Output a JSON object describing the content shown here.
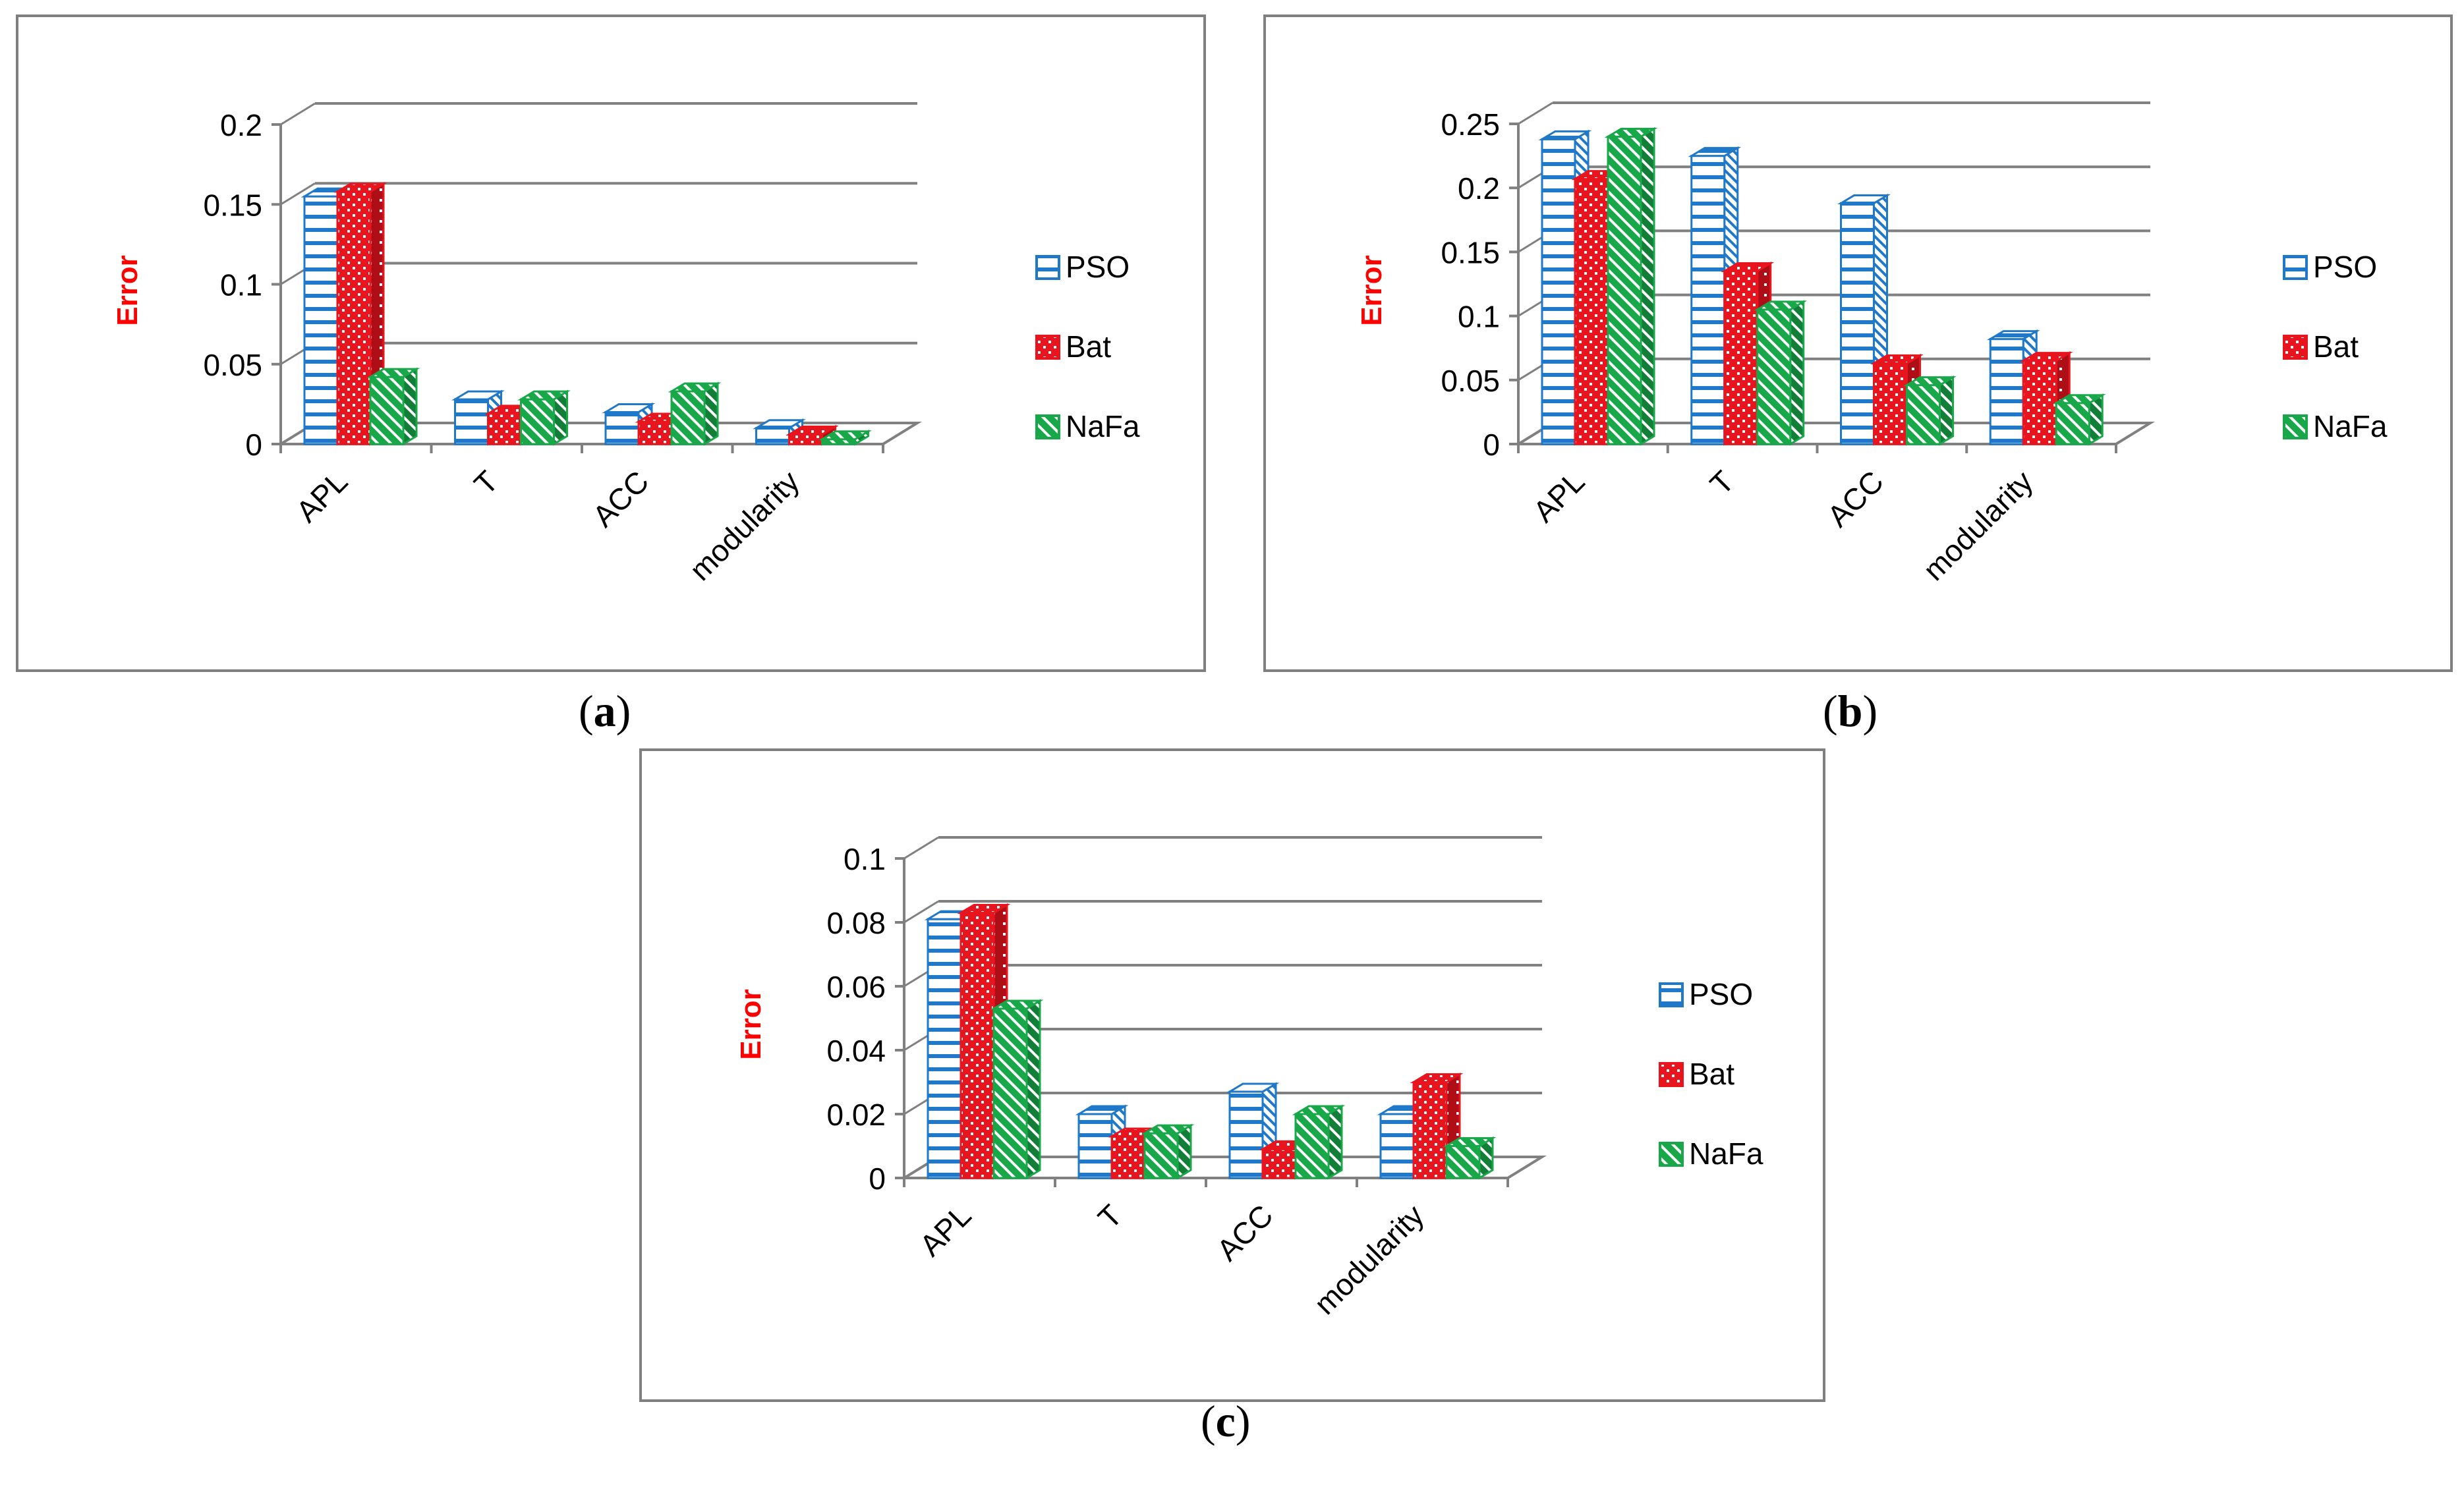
{
  "chart_data": [
    {
      "type": "bar",
      "panel": "a",
      "ylabel": "Error",
      "ylim": [
        0,
        0.2
      ],
      "yticks": [
        "0",
        "0.05",
        "0.1",
        "0.15",
        "0.2"
      ],
      "categories": [
        "APL",
        "T",
        "ACC",
        "modularity"
      ],
      "series": [
        {
          "name": "PSO",
          "values": [
            0.155,
            0.028,
            0.02,
            0.01
          ]
        },
        {
          "name": "Bat",
          "values": [
            0.158,
            0.019,
            0.014,
            0.006
          ]
        },
        {
          "name": "NaFa",
          "values": [
            0.042,
            0.028,
            0.033,
            0.003
          ]
        }
      ],
      "legend": "right"
    },
    {
      "type": "bar",
      "panel": "b",
      "ylabel": "Error",
      "ylim": [
        0,
        0.25
      ],
      "yticks": [
        "0",
        "0.05",
        "0.1",
        "0.15",
        "0.2",
        "0.25"
      ],
      "categories": [
        "APL",
        "T",
        "ACC",
        "modularity"
      ],
      "series": [
        {
          "name": "PSO",
          "values": [
            0.238,
            0.225,
            0.188,
            0.082
          ]
        },
        {
          "name": "Bat",
          "values": [
            0.207,
            0.135,
            0.063,
            0.065
          ]
        },
        {
          "name": "NaFa",
          "values": [
            0.24,
            0.105,
            0.046,
            0.032
          ]
        }
      ],
      "legend": "right"
    },
    {
      "type": "bar",
      "panel": "c",
      "ylabel": "Error",
      "ylim": [
        0,
        0.1
      ],
      "yticks": [
        "0",
        "0.02",
        "0.04",
        "0.06",
        "0.08",
        "0.1"
      ],
      "categories": [
        "APL",
        "T",
        "ACC",
        "modularity"
      ],
      "series": [
        {
          "name": "PSO",
          "values": [
            0.081,
            0.02,
            0.027,
            0.02
          ]
        },
        {
          "name": "Bat",
          "values": [
            0.083,
            0.013,
            0.009,
            0.03
          ]
        },
        {
          "name": "NaFa",
          "values": [
            0.053,
            0.014,
            0.02,
            0.01
          ]
        }
      ],
      "legend": "right"
    }
  ],
  "captions": {
    "a": {
      "open": "(",
      "letter": "a",
      "close": ")"
    },
    "b": {
      "open": "(",
      "letter": "b",
      "close": ")"
    },
    "c": {
      "open": "(",
      "letter": "c",
      "close": ")"
    }
  },
  "colors": {
    "PSO": "#1f78c8",
    "Bat": "#e8141e",
    "NaFa": "#18a84a",
    "ylabel": "#ff0000",
    "grid": "#808080"
  }
}
